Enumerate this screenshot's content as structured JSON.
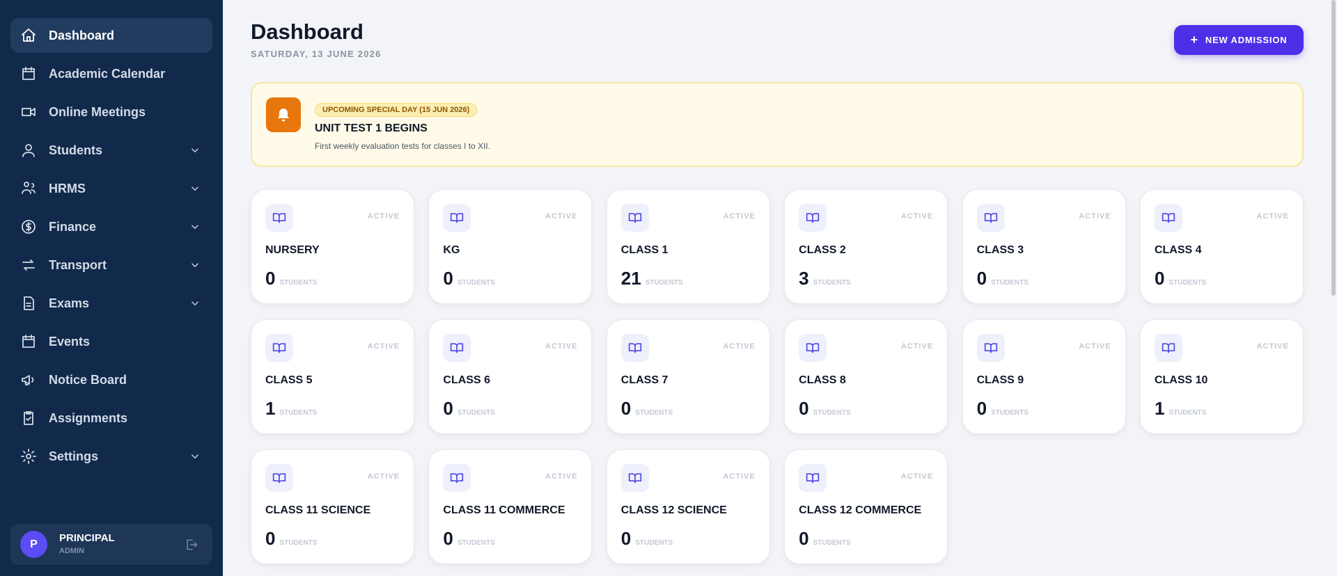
{
  "sidebar": {
    "nav": [
      {
        "label": "Dashboard",
        "active": true,
        "dropdown": false
      },
      {
        "label": "Academic Calendar",
        "active": false,
        "dropdown": false
      },
      {
        "label": "Online Meetings",
        "active": false,
        "dropdown": false
      },
      {
        "label": "Students",
        "active": false,
        "dropdown": true
      },
      {
        "label": "HRMS",
        "active": false,
        "dropdown": true
      },
      {
        "label": "Finance",
        "active": false,
        "dropdown": true
      },
      {
        "label": "Transport",
        "active": false,
        "dropdown": true
      },
      {
        "label": "Exams",
        "active": false,
        "dropdown": true
      },
      {
        "label": "Events",
        "active": false,
        "dropdown": false
      },
      {
        "label": "Notice Board",
        "active": false,
        "dropdown": false
      },
      {
        "label": "Assignments",
        "active": false,
        "dropdown": false
      },
      {
        "label": "Settings",
        "active": false,
        "dropdown": true
      }
    ],
    "user": {
      "initial": "P",
      "name": "PRINCIPAL",
      "role": "ADMIN"
    }
  },
  "header": {
    "title": "Dashboard",
    "date": "SATURDAY, 13 JUNE 2026",
    "button": "NEW ADMISSION"
  },
  "banner": {
    "badge": "UPCOMING SPECIAL DAY (15 JUN 2026)",
    "title": "UNIT TEST 1 BEGINS",
    "text": "First weekly evaluation tests for classes I to XII."
  },
  "classes": [
    {
      "name": "NURSERY",
      "status": "ACTIVE",
      "count": "0",
      "unit": "STUDENTS"
    },
    {
      "name": "KG",
      "status": "ACTIVE",
      "count": "0",
      "unit": "STUDENTS"
    },
    {
      "name": "CLASS 1",
      "status": "ACTIVE",
      "count": "21",
      "unit": "STUDENTS"
    },
    {
      "name": "CLASS 2",
      "status": "ACTIVE",
      "count": "3",
      "unit": "STUDENTS"
    },
    {
      "name": "CLASS 3",
      "status": "ACTIVE",
      "count": "0",
      "unit": "STUDENTS"
    },
    {
      "name": "CLASS 4",
      "status": "ACTIVE",
      "count": "0",
      "unit": "STUDENTS"
    },
    {
      "name": "CLASS 5",
      "status": "ACTIVE",
      "count": "1",
      "unit": "STUDENTS"
    },
    {
      "name": "CLASS 6",
      "status": "ACTIVE",
      "count": "0",
      "unit": "STUDENTS"
    },
    {
      "name": "CLASS 7",
      "status": "ACTIVE",
      "count": "0",
      "unit": "STUDENTS"
    },
    {
      "name": "CLASS 8",
      "status": "ACTIVE",
      "count": "0",
      "unit": "STUDENTS"
    },
    {
      "name": "CLASS 9",
      "status": "ACTIVE",
      "count": "0",
      "unit": "STUDENTS"
    },
    {
      "name": "CLASS 10",
      "status": "ACTIVE",
      "count": "1",
      "unit": "STUDENTS"
    },
    {
      "name": "CLASS 11 SCIENCE",
      "status": "ACTIVE",
      "count": "0",
      "unit": "STUDENTS"
    },
    {
      "name": "CLASS 11 COMMERCE",
      "status": "ACTIVE",
      "count": "0",
      "unit": "STUDENTS"
    },
    {
      "name": "CLASS 12 SCIENCE",
      "status": "ACTIVE",
      "count": "0",
      "unit": "STUDENTS"
    },
    {
      "name": "CLASS 12 COMMERCE",
      "status": "ACTIVE",
      "count": "0",
      "unit": "STUDENTS"
    }
  ]
}
